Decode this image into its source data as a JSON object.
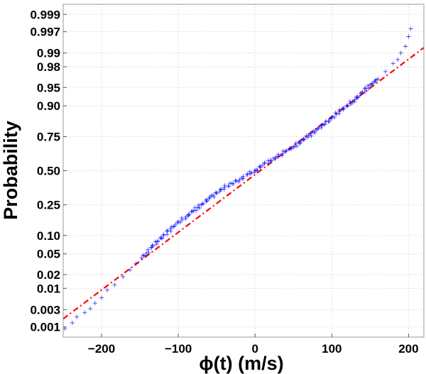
{
  "chart_data": {
    "type": "scatter",
    "subtype": "normal-probability-plot",
    "title": "",
    "xlabel": "ϕ(t) (m/s)",
    "ylabel": "Probability",
    "xlim": [
      -250,
      220
    ],
    "ylim": [
      0.0005,
      0.9995
    ],
    "y_scale": "normal-probability",
    "grid": true,
    "xticks": [
      -200,
      -100,
      0,
      100,
      200
    ],
    "xtick_labels": [
      "−200",
      "−100",
      "0",
      "100",
      "200"
    ],
    "yticks": [
      0.001,
      0.003,
      0.01,
      0.02,
      0.05,
      0.1,
      0.25,
      0.5,
      0.75,
      0.9,
      0.95,
      0.98,
      0.99,
      0.997,
      0.999
    ],
    "ytick_labels": [
      "0.001",
      "0.003",
      "0.01",
      "0.02",
      "0.05",
      "0.10",
      "0.25",
      "0.50",
      "0.75",
      "0.90",
      "0.95",
      "0.98",
      "0.99",
      "0.997",
      "0.999"
    ],
    "series": [
      {
        "style": "markers",
        "marker": "+",
        "color": "#0000ff",
        "x": [
          -248,
          -222,
          -200,
          -183,
          -172,
          -163,
          -155,
          -148,
          -141,
          -135,
          -127,
          -119,
          -110,
          -100,
          -90,
          -80,
          -70,
          -60,
          -50,
          -40,
          -30,
          -20,
          -10,
          0,
          10,
          20,
          30,
          40,
          50,
          60,
          70,
          80,
          90,
          100,
          110,
          120,
          130,
          140,
          150,
          160,
          170,
          180,
          186,
          190,
          196,
          200,
          203
        ],
        "y": [
          0.0009,
          0.0025,
          0.006,
          0.012,
          0.018,
          0.025,
          0.033,
          0.042,
          0.052,
          0.065,
          0.08,
          0.1,
          0.125,
          0.155,
          0.18,
          0.215,
          0.25,
          0.29,
          0.33,
          0.37,
          0.4,
          0.43,
          0.47,
          0.5,
          0.545,
          0.58,
          0.61,
          0.65,
          0.68,
          0.72,
          0.755,
          0.79,
          0.82,
          0.85,
          0.88,
          0.9,
          0.92,
          0.94,
          0.955,
          0.965,
          0.975,
          0.983,
          0.986,
          0.99,
          0.993,
          0.996,
          0.9975
        ]
      },
      {
        "style": "line",
        "line": "dash-dot",
        "color": "#ff0000",
        "x": [
          -250,
          220
        ],
        "y": [
          0.0017,
          0.9925
        ]
      }
    ]
  }
}
